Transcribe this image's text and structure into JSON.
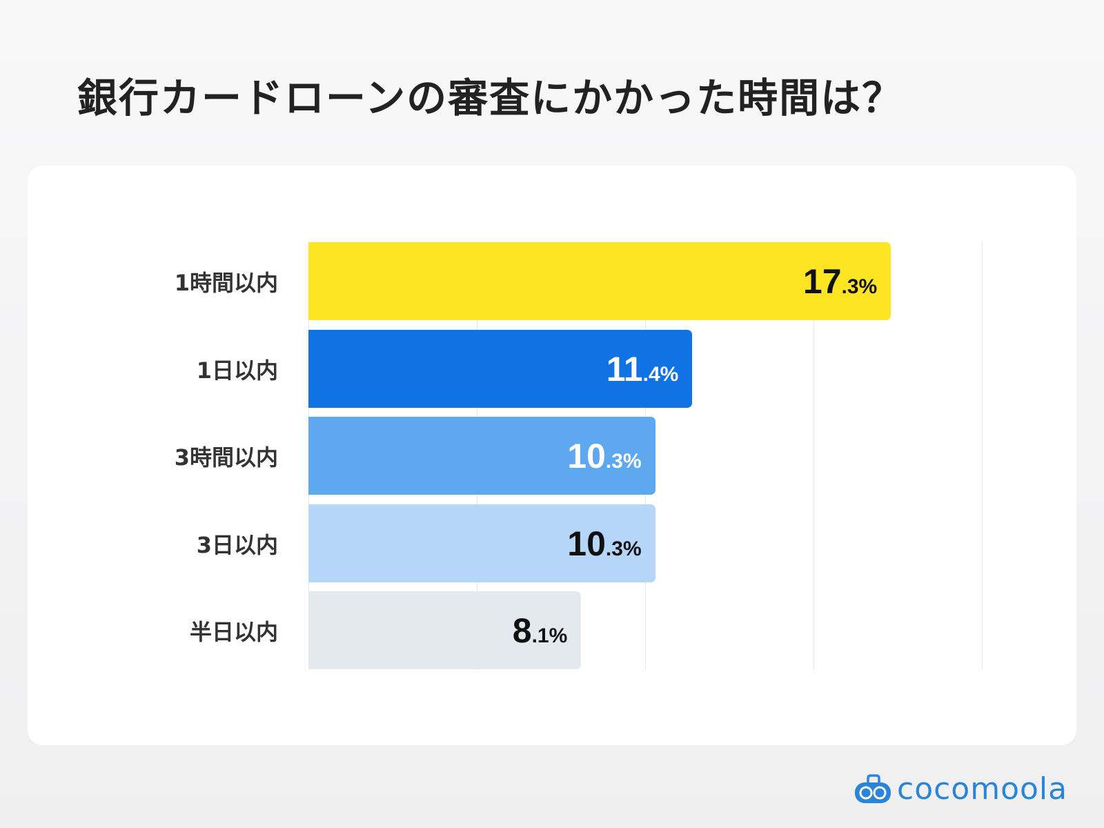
{
  "title": "銀行カードローンの審査にかかった時間は？",
  "chart_data": {
    "type": "bar",
    "orientation": "horizontal",
    "categories": [
      "1時間以内",
      "1日以内",
      "3時間以内",
      "3日以内",
      "半日以内"
    ],
    "values": [
      17.3,
      11.4,
      10.3,
      10.3,
      8.1
    ],
    "value_labels": [
      {
        "int": "17",
        "dec": ".3%"
      },
      {
        "int": "11",
        "dec": ".4%"
      },
      {
        "int": "10",
        "dec": ".3%"
      },
      {
        "int": "10",
        "dec": ".3%"
      },
      {
        "int": "8",
        "dec": ".1%"
      }
    ],
    "bar_colors": [
      "#fde523",
      "#1172e3",
      "#5ea8f0",
      "#b5d6f8",
      "#e4e8ef"
    ],
    "label_colors": [
      "#111111",
      "#ffffff",
      "#ffffff",
      "#111111",
      "#111111"
    ],
    "xlim": [
      0,
      20
    ],
    "grid_step": 5,
    "grid": true,
    "xlabel": "",
    "ylabel": ""
  },
  "logo": {
    "text": "cocomoola",
    "color": "#2a84d8"
  }
}
